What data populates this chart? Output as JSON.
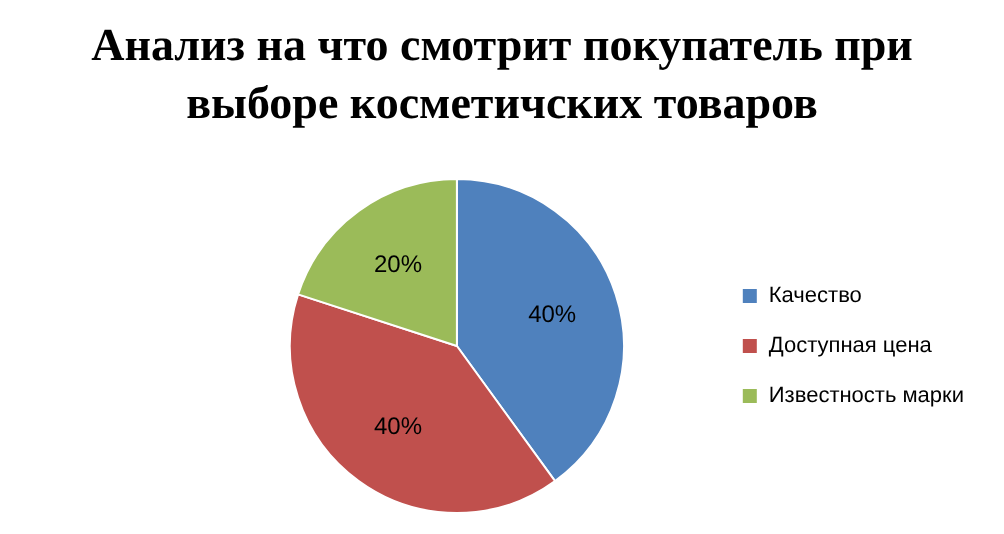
{
  "chart_data": {
    "type": "pie",
    "title": "Анализ на что смотрит покупатель при выборе косметичских товаров",
    "categories": [
      "Качество",
      "Доступная цена",
      "Известность марки"
    ],
    "values": [
      40,
      40,
      20
    ],
    "colors": [
      "#4f81bd",
      "#c0504d",
      "#9bbb59"
    ],
    "value_labels": [
      "40%",
      "40%",
      "20%"
    ],
    "legend": "right"
  }
}
